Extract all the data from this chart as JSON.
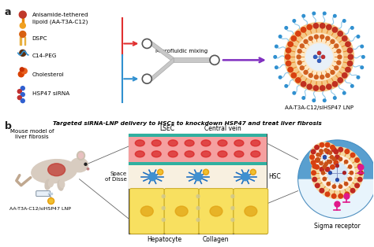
{
  "panel_a_label": "a",
  "panel_b_label": "b",
  "legend_items": [
    {
      "text": "Anisamide-tethered\nlipoid (AA-T3A-C12)"
    },
    {
      "text": "DSPC"
    },
    {
      "text": "C14-PEG"
    },
    {
      "text": "Cholesterol"
    },
    {
      "text": "HSP47 siRNA"
    }
  ],
  "microfluidic_label": "Microfluidic mixing",
  "lnp_label": "AA-T3A-C12/siHSP47 LNP",
  "panel_b_title": "Targeted siRNA-LNP delivery to HSCs to knockdown HSP47 and treat liver fibrosis",
  "mouse_label": "Mouse model of\nliver fibrosis",
  "lnp_label2": "AA-T3A-C12/siHSP47 LNP",
  "lsec_label": "LSEC",
  "central_vein_label": "Central vein",
  "space_disse_label": "Space\nof Disse",
  "hsc_label": "HSC",
  "hepatocyte_label": "Hepatocyte",
  "collagen_label": "Collagen",
  "sigma_label": "Sigma receptor",
  "bg_color": "#ffffff",
  "text_color": "#000000",
  "arrow_red": "#e03030",
  "arrow_blue": "#3090d0",
  "arrow_purple": "#8030c0"
}
